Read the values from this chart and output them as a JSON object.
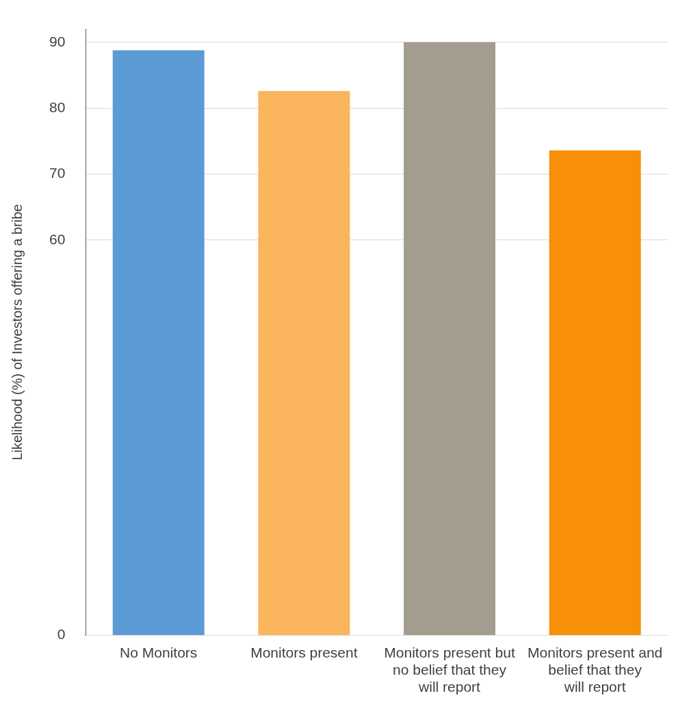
{
  "chart_data": {
    "type": "bar",
    "ylabel": "Likelihood (%) of Investors offering a bribe",
    "categories": [
      "No Monitors",
      "Monitors present",
      "Monitors present but no belief that they will report",
      "Monitors present and belief that they will report"
    ],
    "values": [
      88.8,
      82.6,
      90.0,
      73.6
    ],
    "colors": [
      "#5b9bd5",
      "#fbb55c",
      "#a39d90",
      "#f78f08"
    ],
    "ylim": [
      0,
      92
    ],
    "yticks": [
      0,
      60,
      70,
      80,
      90
    ],
    "grid": "y"
  }
}
